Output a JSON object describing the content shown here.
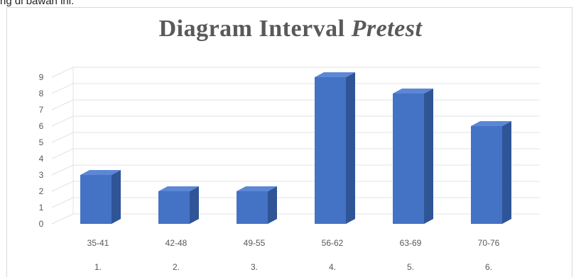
{
  "caption_fragment": "ng di bawah ini.",
  "chart_data": {
    "type": "bar",
    "title_main": "Diagram Interval ",
    "title_italic": "Pretest",
    "categories": [
      "35-41",
      "42-48",
      "49-55",
      "56-62",
      "63-69",
      "70-76"
    ],
    "category_numbers": [
      "1.",
      "2.",
      "3.",
      "4.",
      "5.",
      "6."
    ],
    "values": [
      3,
      2,
      2,
      9,
      8,
      6
    ],
    "ylim": [
      0,
      9
    ],
    "yticks": [
      0,
      1,
      2,
      3,
      4,
      5,
      6,
      7,
      8,
      9
    ],
    "xlabel": "",
    "ylabel": "",
    "grid": true,
    "legend": "none",
    "bar_color": "#4472C4",
    "bar_side_color": "#2F5597",
    "bar_top_color": "#5B87D6"
  }
}
